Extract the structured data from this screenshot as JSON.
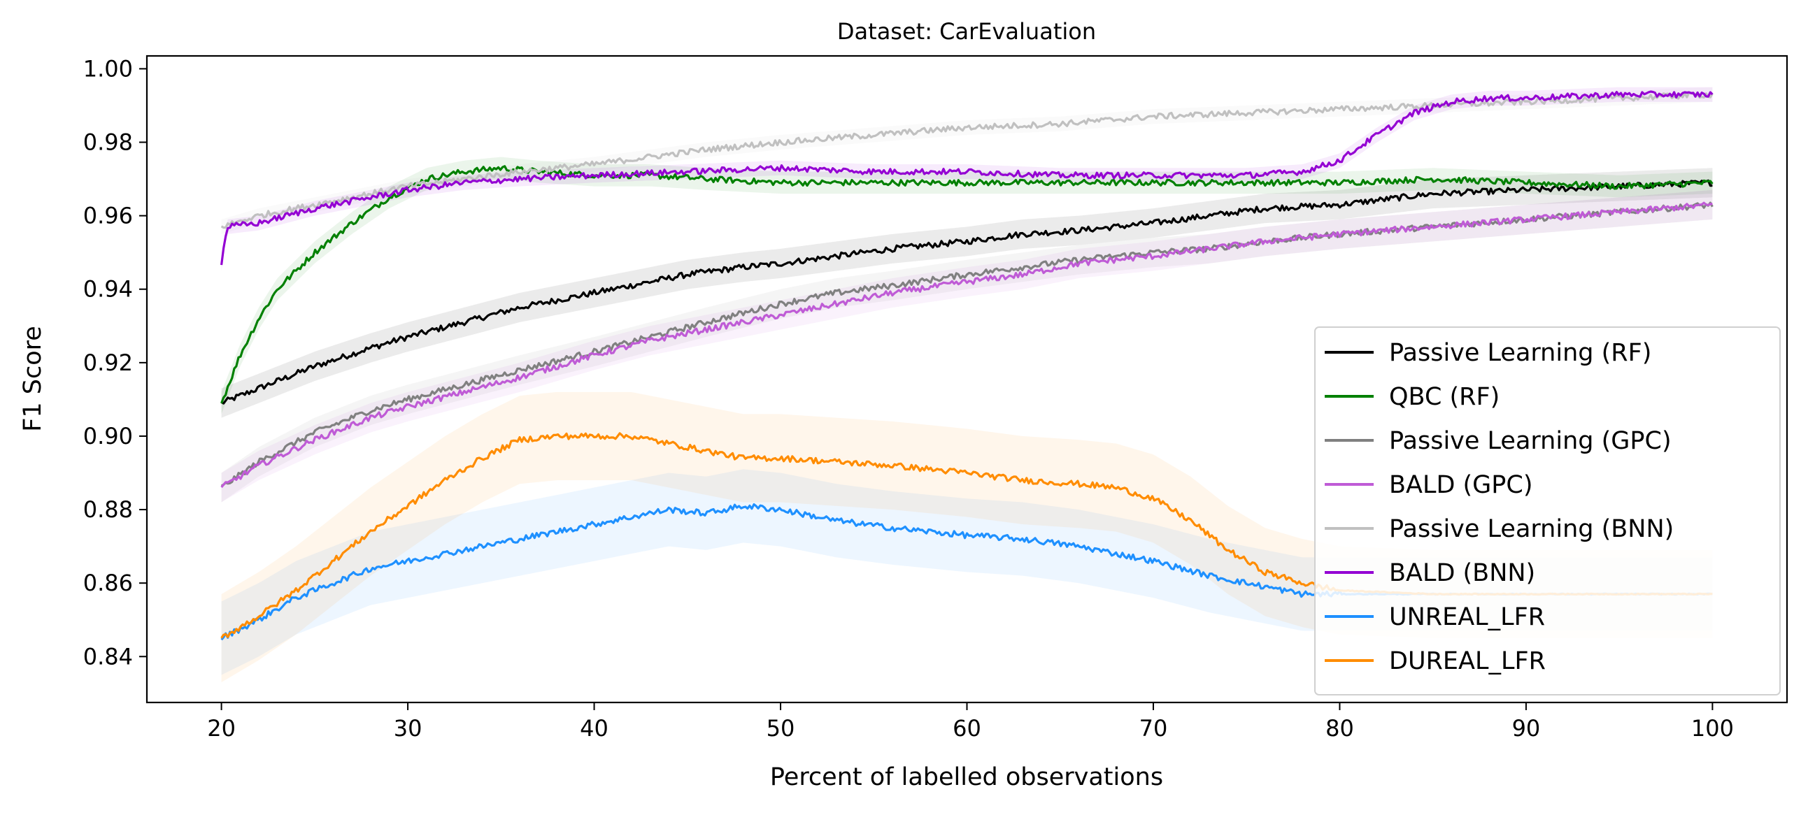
{
  "chart_data": {
    "type": "line",
    "title": "Dataset: CarEvaluation",
    "xlabel": "Percent of labelled observations",
    "ylabel": "F1 Score",
    "xlim": [
      16,
      104
    ],
    "ylim": [
      0.8275,
      1.0035
    ],
    "xticks": [
      20,
      30,
      40,
      50,
      60,
      70,
      80,
      90,
      100
    ],
    "yticks": [
      0.84,
      0.86,
      0.88,
      0.9,
      0.92,
      0.94,
      0.96,
      0.98,
      1.0
    ],
    "ytick_labels": [
      "0.84",
      "0.86",
      "0.88",
      "0.90",
      "0.92",
      "0.94",
      "0.96",
      "0.98",
      "1.00"
    ],
    "grid": false,
    "legend_position": "lower-right",
    "series": [
      {
        "name": "Passive Learning (RF)",
        "color": "#000000",
        "band": 0.004,
        "points": [
          [
            20,
            0.909
          ],
          [
            22,
            0.913
          ],
          [
            25,
            0.919
          ],
          [
            28,
            0.924
          ],
          [
            30,
            0.927
          ],
          [
            33,
            0.931
          ],
          [
            36,
            0.935
          ],
          [
            40,
            0.939
          ],
          [
            43,
            0.942
          ],
          [
            45,
            0.944
          ],
          [
            48,
            0.946
          ],
          [
            50,
            0.947
          ],
          [
            53,
            0.949
          ],
          [
            56,
            0.951
          ],
          [
            60,
            0.953
          ],
          [
            63,
            0.955
          ],
          [
            66,
            0.956
          ],
          [
            70,
            0.958
          ],
          [
            73,
            0.96
          ],
          [
            76,
            0.962
          ],
          [
            80,
            0.963
          ],
          [
            85,
            0.966
          ],
          [
            90,
            0.967
          ],
          [
            95,
            0.968
          ],
          [
            100,
            0.969
          ]
        ]
      },
      {
        "name": "QBC (RF)",
        "color": "#008000",
        "band": 0.003,
        "points": [
          [
            20,
            0.909
          ],
          [
            21,
            0.922
          ],
          [
            22,
            0.932
          ],
          [
            23,
            0.94
          ],
          [
            25,
            0.95
          ],
          [
            27,
            0.958
          ],
          [
            29,
            0.965
          ],
          [
            31,
            0.97
          ],
          [
            33,
            0.972
          ],
          [
            35,
            0.973
          ],
          [
            37,
            0.972
          ],
          [
            40,
            0.971
          ],
          [
            43,
            0.971
          ],
          [
            46,
            0.97
          ],
          [
            50,
            0.969
          ],
          [
            55,
            0.969
          ],
          [
            60,
            0.969
          ],
          [
            65,
            0.969
          ],
          [
            70,
            0.969
          ],
          [
            75,
            0.969
          ],
          [
            80,
            0.969
          ],
          [
            85,
            0.97
          ],
          [
            90,
            0.969
          ],
          [
            95,
            0.968
          ],
          [
            100,
            0.969
          ]
        ]
      },
      {
        "name": "Passive Learning (GPC)",
        "color": "#808080",
        "band": 0.004,
        "points": [
          [
            20,
            0.886
          ],
          [
            22,
            0.893
          ],
          [
            25,
            0.901
          ],
          [
            28,
            0.907
          ],
          [
            30,
            0.91
          ],
          [
            33,
            0.914
          ],
          [
            36,
            0.918
          ],
          [
            40,
            0.923
          ],
          [
            43,
            0.927
          ],
          [
            46,
            0.931
          ],
          [
            50,
            0.936
          ],
          [
            53,
            0.939
          ],
          [
            56,
            0.941
          ],
          [
            60,
            0.944
          ],
          [
            63,
            0.946
          ],
          [
            66,
            0.948
          ],
          [
            70,
            0.95
          ],
          [
            73,
            0.951
          ],
          [
            76,
            0.953
          ],
          [
            80,
            0.955
          ],
          [
            85,
            0.957
          ],
          [
            90,
            0.959
          ],
          [
            95,
            0.961
          ],
          [
            100,
            0.963
          ]
        ]
      },
      {
        "name": "BALD (GPC)",
        "color": "#bf5bd6",
        "band": 0.004,
        "points": [
          [
            20,
            0.886
          ],
          [
            22,
            0.892
          ],
          [
            25,
            0.899
          ],
          [
            28,
            0.905
          ],
          [
            30,
            0.908
          ],
          [
            33,
            0.912
          ],
          [
            36,
            0.916
          ],
          [
            40,
            0.922
          ],
          [
            43,
            0.926
          ],
          [
            46,
            0.929
          ],
          [
            50,
            0.933
          ],
          [
            53,
            0.936
          ],
          [
            56,
            0.939
          ],
          [
            60,
            0.942
          ],
          [
            63,
            0.944
          ],
          [
            66,
            0.947
          ],
          [
            70,
            0.949
          ],
          [
            73,
            0.951
          ],
          [
            76,
            0.953
          ],
          [
            80,
            0.955
          ],
          [
            85,
            0.957
          ],
          [
            90,
            0.959
          ],
          [
            95,
            0.961
          ],
          [
            100,
            0.963
          ]
        ]
      },
      {
        "name": "Passive Learning (BNN)",
        "color": "#c0c0c0",
        "band": 0.002,
        "points": [
          [
            20,
            0.957
          ],
          [
            22,
            0.96
          ],
          [
            25,
            0.963
          ],
          [
            28,
            0.966
          ],
          [
            30,
            0.968
          ],
          [
            33,
            0.97
          ],
          [
            36,
            0.972
          ],
          [
            40,
            0.974
          ],
          [
            43,
            0.976
          ],
          [
            46,
            0.978
          ],
          [
            50,
            0.98
          ],
          [
            55,
            0.982
          ],
          [
            60,
            0.984
          ],
          [
            65,
            0.985
          ],
          [
            70,
            0.987
          ],
          [
            75,
            0.988
          ],
          [
            80,
            0.989
          ],
          [
            85,
            0.99
          ],
          [
            90,
            0.991
          ],
          [
            95,
            0.992
          ],
          [
            100,
            0.993
          ]
        ]
      },
      {
        "name": "BALD (BNN)",
        "color": "#9400d3",
        "band": 0.002,
        "points": [
          [
            20,
            0.947
          ],
          [
            20.3,
            0.957
          ],
          [
            22,
            0.958
          ],
          [
            25,
            0.962
          ],
          [
            28,
            0.965
          ],
          [
            30,
            0.967
          ],
          [
            33,
            0.969
          ],
          [
            36,
            0.97
          ],
          [
            40,
            0.971
          ],
          [
            45,
            0.972
          ],
          [
            50,
            0.973
          ],
          [
            55,
            0.972
          ],
          [
            60,
            0.972
          ],
          [
            65,
            0.971
          ],
          [
            70,
            0.971
          ],
          [
            75,
            0.971
          ],
          [
            78,
            0.972
          ],
          [
            80,
            0.975
          ],
          [
            82,
            0.982
          ],
          [
            84,
            0.988
          ],
          [
            86,
            0.991
          ],
          [
            88,
            0.992
          ],
          [
            90,
            0.992
          ],
          [
            95,
            0.993
          ],
          [
            100,
            0.993
          ]
        ]
      },
      {
        "name": "UNREAL_LFR",
        "color": "#1e90ff",
        "band": 0.01,
        "points": [
          [
            20,
            0.845
          ],
          [
            22,
            0.85
          ],
          [
            24,
            0.856
          ],
          [
            26,
            0.86
          ],
          [
            28,
            0.864
          ],
          [
            30,
            0.866
          ],
          [
            33,
            0.869
          ],
          [
            36,
            0.872
          ],
          [
            40,
            0.876
          ],
          [
            42,
            0.878
          ],
          [
            44,
            0.88
          ],
          [
            46,
            0.879
          ],
          [
            48,
            0.881
          ],
          [
            50,
            0.88
          ],
          [
            53,
            0.877
          ],
          [
            56,
            0.875
          ],
          [
            60,
            0.873
          ],
          [
            63,
            0.872
          ],
          [
            66,
            0.87
          ],
          [
            70,
            0.866
          ],
          [
            73,
            0.862
          ],
          [
            76,
            0.859
          ],
          [
            78,
            0.857
          ],
          [
            80,
            0.857
          ],
          [
            85,
            0.857
          ],
          [
            90,
            0.857
          ],
          [
            100,
            0.857
          ]
        ]
      },
      {
        "name": "DUREAL_LFR",
        "color": "#ff8c00",
        "band": 0.012,
        "points": [
          [
            20,
            0.845
          ],
          [
            22,
            0.851
          ],
          [
            24,
            0.858
          ],
          [
            26,
            0.866
          ],
          [
            28,
            0.874
          ],
          [
            30,
            0.881
          ],
          [
            32,
            0.888
          ],
          [
            34,
            0.894
          ],
          [
            36,
            0.899
          ],
          [
            38,
            0.9
          ],
          [
            40,
            0.9
          ],
          [
            42,
            0.9
          ],
          [
            44,
            0.898
          ],
          [
            46,
            0.896
          ],
          [
            48,
            0.894
          ],
          [
            50,
            0.894
          ],
          [
            53,
            0.893
          ],
          [
            56,
            0.892
          ],
          [
            60,
            0.89
          ],
          [
            63,
            0.888
          ],
          [
            66,
            0.887
          ],
          [
            68,
            0.886
          ],
          [
            70,
            0.883
          ],
          [
            72,
            0.877
          ],
          [
            74,
            0.869
          ],
          [
            76,
            0.863
          ],
          [
            78,
            0.86
          ],
          [
            80,
            0.858
          ],
          [
            85,
            0.857
          ],
          [
            90,
            0.857
          ],
          [
            100,
            0.857
          ]
        ]
      }
    ]
  }
}
